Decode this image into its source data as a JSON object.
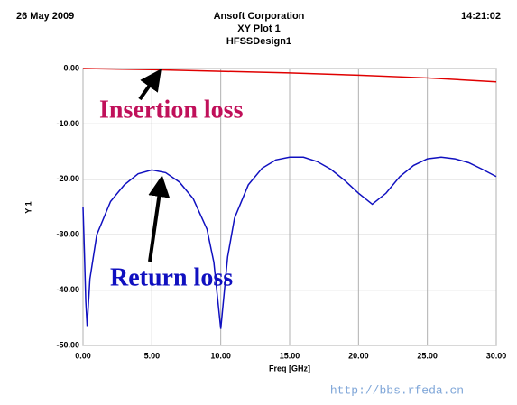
{
  "chart_data": {
    "type": "line",
    "date": "26 May 2009",
    "title": "Ansoft Corporation",
    "subtitle": "XY Plot 1",
    "design": "HFSSDesign1",
    "time": "14:21:02",
    "x_label": "Freq [GHz]",
    "y_label": "Y 1",
    "annotations": [
      "Insertion loss",
      "Return loss"
    ],
    "watermark": "http://bbs.rfeda.cn",
    "xlim": [
      0,
      30
    ],
    "ylim": [
      -50,
      0
    ],
    "xticks": [
      {
        "value": 0,
        "label": "0.00"
      },
      {
        "value": 5,
        "label": "5.00"
      },
      {
        "value": 10,
        "label": "10.00"
      },
      {
        "value": 15,
        "label": "15.00"
      },
      {
        "value": 20,
        "label": "20.00"
      },
      {
        "value": 25,
        "label": "25.00"
      },
      {
        "value": 30,
        "label": "30.00"
      }
    ],
    "yticks": [
      {
        "value": 0,
        "label": "0.00"
      },
      {
        "value": -10,
        "label": "-10.00"
      },
      {
        "value": -20,
        "label": "-20.00"
      },
      {
        "value": -30,
        "label": "-30.00"
      },
      {
        "value": -40,
        "label": "-40.00"
      },
      {
        "value": -50,
        "label": "-50.00"
      }
    ],
    "grid": true,
    "series": [
      {
        "name": "Insertion loss",
        "color": "#e00000",
        "x": [
          0,
          5,
          10,
          15,
          20,
          25,
          30
        ],
        "values": [
          0,
          -0.2,
          -0.5,
          -0.8,
          -1.2,
          -1.7,
          -2.4
        ]
      },
      {
        "name": "Return loss",
        "color": "#1010c0",
        "x": [
          0,
          0.1,
          0.2,
          0.3,
          0.5,
          1,
          2,
          3,
          4,
          5,
          6,
          7,
          8,
          9,
          9.5,
          10,
          10.5,
          11,
          12,
          13,
          14,
          15,
          16,
          17,
          18,
          19,
          20,
          21,
          22,
          23,
          24,
          25,
          26,
          27,
          28,
          29,
          30
        ],
        "values": [
          -25,
          -33,
          -42,
          -46.5,
          -38,
          -30,
          -24,
          -21,
          -19,
          -18.3,
          -18.8,
          -20.5,
          -23.5,
          -29,
          -35,
          -47,
          -34,
          -27,
          -21,
          -18,
          -16.5,
          -16,
          -16,
          -16.8,
          -18.2,
          -20.2,
          -22.5,
          -24.5,
          -22.5,
          -19.5,
          -17.5,
          -16.3,
          -16,
          -16.3,
          -17,
          -18.2,
          -19.5
        ]
      }
    ]
  }
}
